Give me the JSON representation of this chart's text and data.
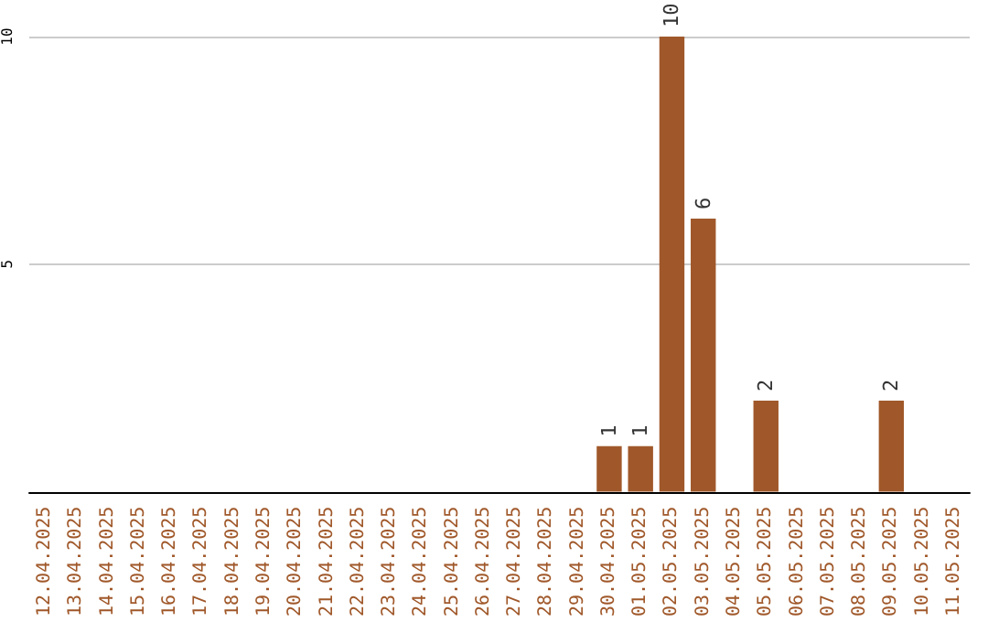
{
  "chart_data": {
    "type": "bar",
    "categories": [
      "12.04.2025",
      "13.04.2025",
      "14.04.2025",
      "15.04.2025",
      "16.04.2025",
      "17.04.2025",
      "18.04.2025",
      "19.04.2025",
      "20.04.2025",
      "21.04.2025",
      "22.04.2025",
      "23.04.2025",
      "24.04.2025",
      "25.04.2025",
      "26.04.2025",
      "27.04.2025",
      "28.04.2025",
      "29.04.2025",
      "30.04.2025",
      "01.05.2025",
      "02.05.2025",
      "03.05.2025",
      "04.05.2025",
      "05.05.2025",
      "06.05.2025",
      "07.05.2025",
      "08.05.2025",
      "09.05.2025",
      "10.05.2025",
      "11.05.2025"
    ],
    "values": [
      0,
      0,
      0,
      0,
      0,
      0,
      0,
      0,
      0,
      0,
      0,
      0,
      0,
      0,
      0,
      0,
      0,
      0,
      1,
      1,
      10,
      6,
      0,
      2,
      0,
      0,
      0,
      2,
      0,
      0
    ],
    "value_labels": [
      null,
      null,
      null,
      null,
      null,
      null,
      null,
      null,
      null,
      null,
      null,
      null,
      null,
      null,
      null,
      null,
      null,
      null,
      "1",
      "1",
      "10",
      "6",
      null,
      "2",
      null,
      null,
      null,
      "2",
      null,
      null
    ],
    "color": "#a0582a",
    "ylim": [
      0,
      10
    ],
    "yticks": [
      5,
      10
    ],
    "grid": "y"
  }
}
